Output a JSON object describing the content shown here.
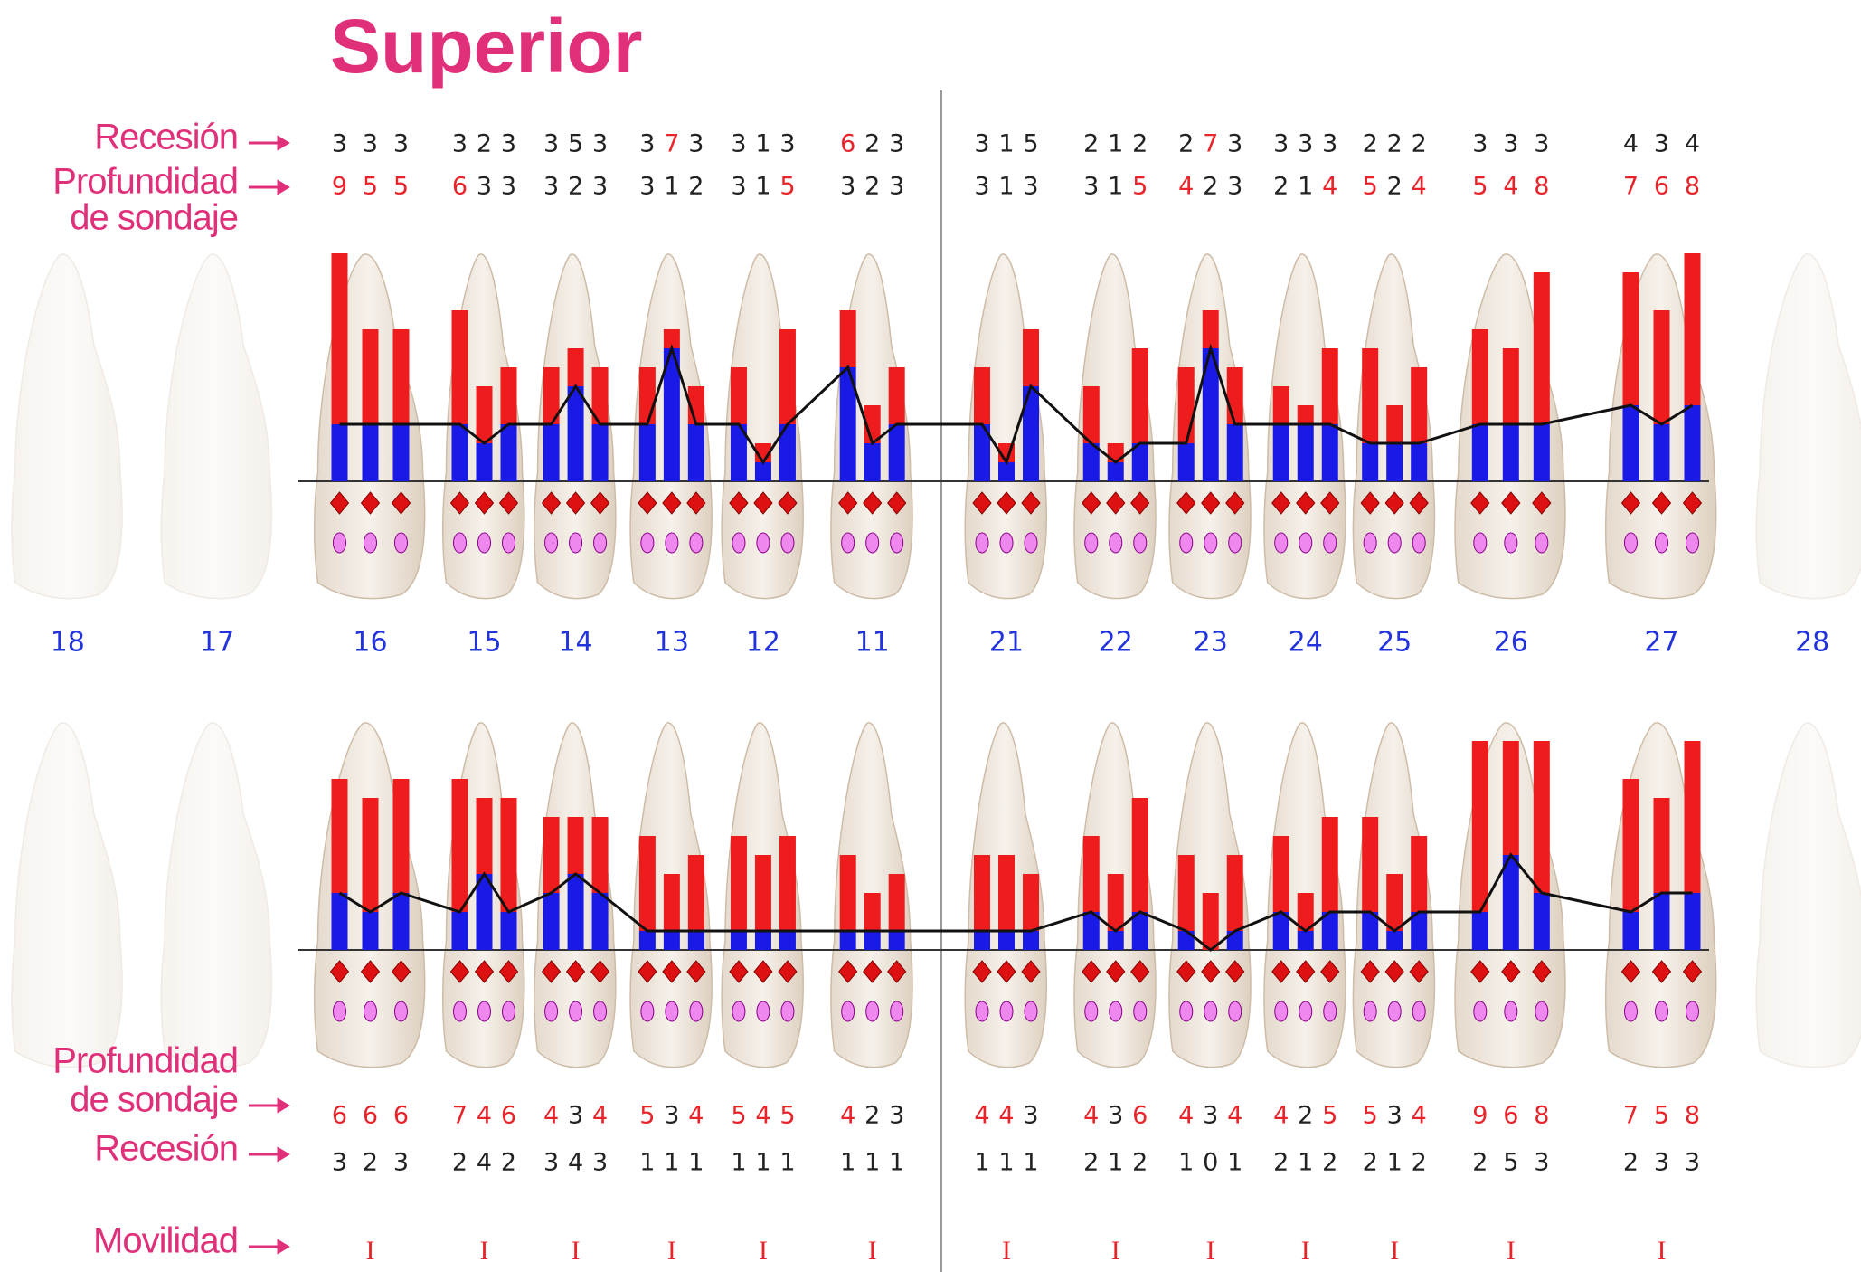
{
  "header": {
    "title": "Superior"
  },
  "labels": {
    "upper": {
      "recession": "Recesión",
      "probing_depth": [
        "Profundidad",
        "de sondaje"
      ]
    },
    "lower": {
      "probing_depth": [
        "Profundidad",
        "de sondaje"
      ],
      "recession": "Recesión",
      "mobility": "Movilidad"
    }
  },
  "teeth": [
    {
      "number": "18"
    },
    {
      "number": "17"
    },
    {
      "number": "16",
      "buccal": {
        "recession": [
          3,
          3,
          3
        ],
        "depth": [
          9,
          5,
          5
        ]
      },
      "palatal": {
        "depth": [
          6,
          6,
          6
        ],
        "recession": [
          3,
          2,
          3
        ]
      },
      "mobility": "I"
    },
    {
      "number": "15",
      "buccal": {
        "recession": [
          3,
          2,
          3
        ],
        "depth": [
          6,
          3,
          3
        ]
      },
      "palatal": {
        "depth": [
          7,
          4,
          6
        ],
        "recession": [
          2,
          4,
          2
        ]
      },
      "mobility": "I"
    },
    {
      "number": "14",
      "buccal": {
        "recession": [
          3,
          5,
          3
        ],
        "depth": [
          3,
          2,
          3
        ]
      },
      "palatal": {
        "depth": [
          4,
          3,
          4
        ],
        "recession": [
          3,
          4,
          3
        ]
      },
      "mobility": "I"
    },
    {
      "number": "13",
      "buccal": {
        "recession": [
          3,
          7,
          3
        ],
        "depth": [
          3,
          1,
          2
        ]
      },
      "palatal": {
        "depth": [
          5,
          3,
          4
        ],
        "recession": [
          1,
          1,
          1
        ]
      },
      "mobility": "I"
    },
    {
      "number": "12",
      "buccal": {
        "recession": [
          3,
          1,
          3
        ],
        "depth": [
          3,
          1,
          5
        ]
      },
      "palatal": {
        "depth": [
          5,
          4,
          5
        ],
        "recession": [
          1,
          1,
          1
        ]
      },
      "mobility": "I"
    },
    {
      "number": "11",
      "buccal": {
        "recession": [
          6,
          2,
          3
        ],
        "depth": [
          3,
          2,
          3
        ]
      },
      "palatal": {
        "depth": [
          4,
          2,
          3
        ],
        "recession": [
          1,
          1,
          1
        ]
      },
      "mobility": "I"
    },
    {
      "number": "21",
      "buccal": {
        "recession": [
          3,
          1,
          5
        ],
        "depth": [
          3,
          1,
          3
        ]
      },
      "palatal": {
        "depth": [
          4,
          4,
          3
        ],
        "recession": [
          1,
          1,
          1
        ]
      },
      "mobility": "I"
    },
    {
      "number": "22",
      "buccal": {
        "recession": [
          2,
          1,
          2
        ],
        "depth": [
          3,
          1,
          5
        ]
      },
      "palatal": {
        "depth": [
          4,
          3,
          6
        ],
        "recession": [
          2,
          1,
          2
        ]
      },
      "mobility": "I"
    },
    {
      "number": "23",
      "buccal": {
        "recession": [
          2,
          7,
          3
        ],
        "depth": [
          4,
          2,
          3
        ]
      },
      "palatal": {
        "depth": [
          4,
          3,
          4
        ],
        "recession": [
          1,
          0,
          1
        ]
      },
      "mobility": "I"
    },
    {
      "number": "24",
      "buccal": {
        "recession": [
          3,
          3,
          3
        ],
        "depth": [
          2,
          1,
          4
        ]
      },
      "palatal": {
        "depth": [
          4,
          2,
          5
        ],
        "recession": [
          2,
          1,
          2
        ]
      },
      "mobility": "I"
    },
    {
      "number": "25",
      "buccal": {
        "recession": [
          2,
          2,
          2
        ],
        "depth": [
          5,
          2,
          4
        ]
      },
      "palatal": {
        "depth": [
          5,
          3,
          4
        ],
        "recession": [
          2,
          1,
          2
        ]
      },
      "mobility": "I"
    },
    {
      "number": "26",
      "buccal": {
        "recession": [
          3,
          3,
          3
        ],
        "depth": [
          5,
          4,
          8
        ]
      },
      "palatal": {
        "depth": [
          9,
          6,
          8
        ],
        "recession": [
          2,
          5,
          3
        ]
      },
      "mobility": "I"
    },
    {
      "number": "27",
      "buccal": {
        "recession": [
          4,
          3,
          4
        ],
        "depth": [
          7,
          6,
          8
        ]
      },
      "palatal": {
        "depth": [
          7,
          5,
          8
        ],
        "recession": [
          2,
          3,
          3
        ]
      },
      "mobility": "I"
    },
    {
      "number": "28"
    }
  ]
}
